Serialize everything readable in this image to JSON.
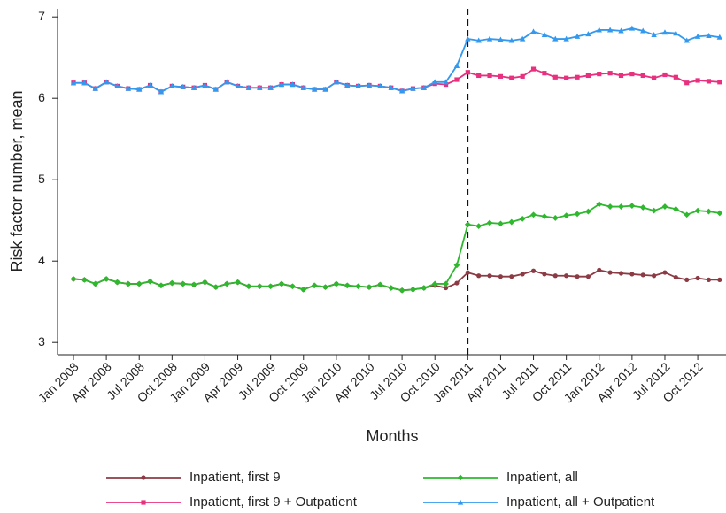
{
  "chart_data": {
    "type": "line",
    "y_label": "Risk factor number, mean",
    "x_label": "Months",
    "categories": [
      "Jan 2008",
      null,
      null,
      "Apr 2008",
      null,
      null,
      "Jul 2008",
      null,
      null,
      "Oct 2008",
      null,
      null,
      "Jan 2009",
      null,
      null,
      "Apr 2009",
      null,
      null,
      "Jul 2009",
      null,
      null,
      "Oct 2009",
      null,
      null,
      "Jan 2010",
      null,
      null,
      "Apr 2010",
      null,
      null,
      "Jul 2010",
      null,
      null,
      "Oct 2010",
      null,
      null,
      "Jan 2011",
      null,
      null,
      "Apr 2011",
      null,
      null,
      "Jul 2011",
      null,
      null,
      "Oct 2011",
      null,
      null,
      "Jan 2012",
      null,
      null,
      "Apr 2012",
      null,
      null,
      "Jul 2012",
      null,
      null,
      "Oct 2012",
      null,
      null
    ],
    "ylim": [
      2.85,
      7.1
    ],
    "yticks": [
      3,
      4,
      5,
      6,
      7
    ],
    "vline": {
      "x": "Jan 2011",
      "style": "dashed"
    },
    "series": [
      {
        "name": "Inpatient, first 9",
        "color": "#8c3b44",
        "marker": "circle",
        "values": [
          3.78,
          3.77,
          3.72,
          3.78,
          3.74,
          3.72,
          3.72,
          3.75,
          3.7,
          3.73,
          3.72,
          3.71,
          3.74,
          3.68,
          3.72,
          3.74,
          3.69,
          3.69,
          3.69,
          3.72,
          3.69,
          3.65,
          3.7,
          3.68,
          3.72,
          3.7,
          3.69,
          3.68,
          3.71,
          3.67,
          3.64,
          3.65,
          3.67,
          3.7,
          3.67,
          3.73,
          3.86,
          3.82,
          3.82,
          3.81,
          3.81,
          3.84,
          3.88,
          3.84,
          3.82,
          3.82,
          3.81,
          3.81,
          3.89,
          3.86,
          3.85,
          3.84,
          3.83,
          3.82,
          3.86,
          3.8,
          3.77,
          3.79,
          3.77,
          3.77
        ]
      },
      {
        "name": "Inpatient, all",
        "color": "#2eb82e",
        "marker": "diamond",
        "values": [
          3.78,
          3.77,
          3.72,
          3.78,
          3.74,
          3.72,
          3.72,
          3.75,
          3.7,
          3.73,
          3.72,
          3.71,
          3.74,
          3.68,
          3.72,
          3.74,
          3.69,
          3.69,
          3.69,
          3.72,
          3.69,
          3.65,
          3.7,
          3.68,
          3.72,
          3.7,
          3.69,
          3.68,
          3.71,
          3.67,
          3.64,
          3.65,
          3.67,
          3.72,
          3.72,
          3.95,
          4.45,
          4.43,
          4.47,
          4.46,
          4.48,
          4.52,
          4.57,
          4.55,
          4.53,
          4.56,
          4.58,
          4.61,
          4.7,
          4.67,
          4.67,
          4.68,
          4.66,
          4.62,
          4.67,
          4.64,
          4.57,
          4.62,
          4.61,
          4.59
        ]
      },
      {
        "name": "Inpatient, first 9 + Outpatient",
        "color": "#e8307f",
        "marker": "square",
        "values": [
          6.19,
          6.19,
          6.12,
          6.2,
          6.15,
          6.12,
          6.11,
          6.16,
          6.08,
          6.15,
          6.14,
          6.13,
          6.16,
          6.11,
          6.2,
          6.15,
          6.13,
          6.13,
          6.13,
          6.17,
          6.17,
          6.13,
          6.11,
          6.11,
          6.2,
          6.16,
          6.15,
          6.16,
          6.15,
          6.13,
          6.09,
          6.12,
          6.13,
          6.18,
          6.17,
          6.23,
          6.32,
          6.28,
          6.28,
          6.27,
          6.25,
          6.27,
          6.36,
          6.31,
          6.26,
          6.25,
          6.26,
          6.28,
          6.3,
          6.31,
          6.28,
          6.3,
          6.28,
          6.25,
          6.29,
          6.26,
          6.19,
          6.22,
          6.21,
          6.2
        ]
      },
      {
        "name": "Inpatient, all + Outpatient",
        "color": "#3399ee",
        "marker": "triangle",
        "values": [
          6.19,
          6.19,
          6.12,
          6.2,
          6.15,
          6.12,
          6.11,
          6.16,
          6.08,
          6.15,
          6.14,
          6.13,
          6.16,
          6.11,
          6.2,
          6.15,
          6.13,
          6.13,
          6.13,
          6.17,
          6.17,
          6.13,
          6.11,
          6.11,
          6.2,
          6.16,
          6.15,
          6.16,
          6.15,
          6.13,
          6.09,
          6.12,
          6.13,
          6.2,
          6.2,
          6.4,
          6.73,
          6.71,
          6.73,
          6.72,
          6.71,
          6.73,
          6.82,
          6.78,
          6.73,
          6.73,
          6.76,
          6.79,
          6.84,
          6.84,
          6.83,
          6.86,
          6.83,
          6.78,
          6.81,
          6.8,
          6.71,
          6.76,
          6.77,
          6.75
        ]
      }
    ]
  }
}
